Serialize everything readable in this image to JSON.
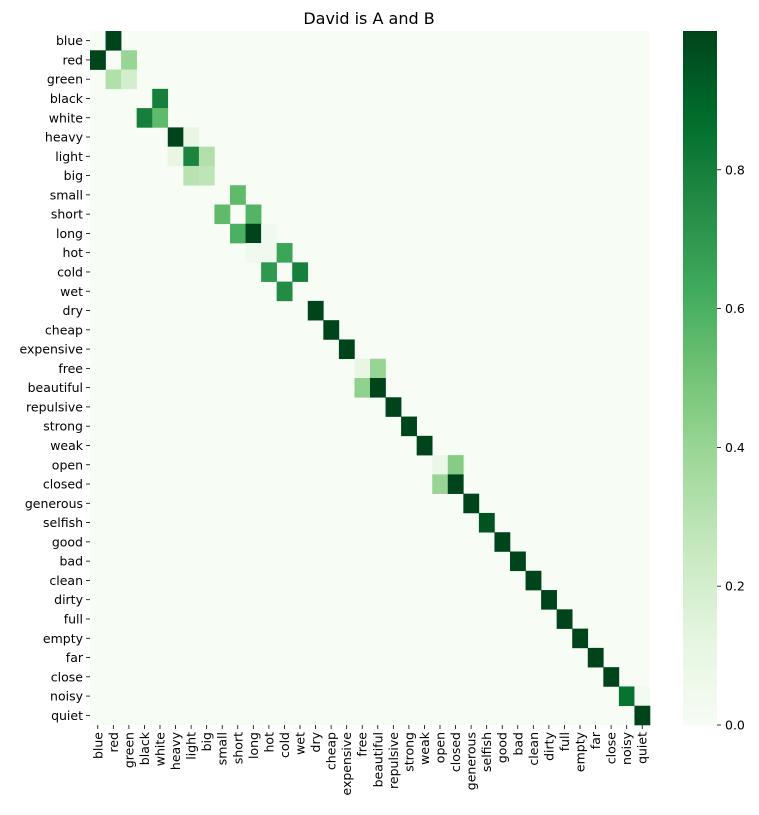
{
  "chart_data": {
    "type": "heatmap",
    "title": "David is A and B",
    "xlabel": "",
    "ylabel": "",
    "labels": [
      "blue",
      "red",
      "green",
      "black",
      "white",
      "heavy",
      "light",
      "big",
      "small",
      "short",
      "long",
      "hot",
      "cold",
      "wet",
      "dry",
      "cheap",
      "expensive",
      "free",
      "beautiful",
      "repulsive",
      "strong",
      "weak",
      "open",
      "closed",
      "generous",
      "selfish",
      "good",
      "bad",
      "clean",
      "dirty",
      "full",
      "empty",
      "far",
      "close",
      "noisy",
      "quiet"
    ],
    "colormap": "Greens",
    "vmin": 0,
    "vmax": 1,
    "colorbar_ticks": [
      0.0,
      0.2,
      0.4,
      0.6,
      0.8
    ],
    "colorbar_tick_labels": [
      "0.0",
      "0.2",
      "0.4",
      "0.6",
      "0.8"
    ],
    "cells": [
      [
        0,
        1,
        1.0
      ],
      [
        1,
        0,
        1.0
      ],
      [
        1,
        2,
        0.4
      ],
      [
        2,
        1,
        0.32
      ],
      [
        2,
        2,
        0.2
      ],
      [
        3,
        4,
        0.8
      ],
      [
        4,
        3,
        0.8
      ],
      [
        4,
        4,
        0.55
      ],
      [
        5,
        5,
        1.0
      ],
      [
        5,
        6,
        0.1
      ],
      [
        6,
        5,
        0.1
      ],
      [
        6,
        6,
        0.78
      ],
      [
        6,
        7,
        0.32
      ],
      [
        7,
        6,
        0.3
      ],
      [
        7,
        7,
        0.28
      ],
      [
        8,
        9,
        0.55
      ],
      [
        9,
        8,
        0.55
      ],
      [
        9,
        10,
        0.58
      ],
      [
        10,
        9,
        0.6
      ],
      [
        10,
        10,
        1.0
      ],
      [
        10,
        11,
        0.05
      ],
      [
        11,
        10,
        0.05
      ],
      [
        11,
        11,
        0.05
      ],
      [
        11,
        12,
        0.65
      ],
      [
        12,
        11,
        0.7
      ],
      [
        12,
        13,
        0.8
      ],
      [
        13,
        12,
        0.75
      ],
      [
        14,
        14,
        1.0
      ],
      [
        15,
        15,
        1.0
      ],
      [
        16,
        16,
        1.0
      ],
      [
        17,
        17,
        0.1
      ],
      [
        17,
        18,
        0.4
      ],
      [
        18,
        17,
        0.42
      ],
      [
        18,
        18,
        1.0
      ],
      [
        19,
        19,
        1.0
      ],
      [
        20,
        20,
        1.0
      ],
      [
        21,
        21,
        1.0
      ],
      [
        22,
        22,
        0.08
      ],
      [
        22,
        23,
        0.45
      ],
      [
        23,
        22,
        0.4
      ],
      [
        23,
        23,
        1.0
      ],
      [
        24,
        24,
        1.0
      ],
      [
        25,
        25,
        0.95
      ],
      [
        26,
        26,
        1.0
      ],
      [
        27,
        27,
        1.0
      ],
      [
        28,
        28,
        1.0
      ],
      [
        29,
        29,
        1.0
      ],
      [
        30,
        30,
        1.0
      ],
      [
        31,
        31,
        1.0
      ],
      [
        32,
        32,
        1.0
      ],
      [
        33,
        33,
        1.0
      ],
      [
        34,
        34,
        0.85
      ],
      [
        34,
        35,
        0.03
      ],
      [
        35,
        35,
        1.0
      ]
    ]
  }
}
